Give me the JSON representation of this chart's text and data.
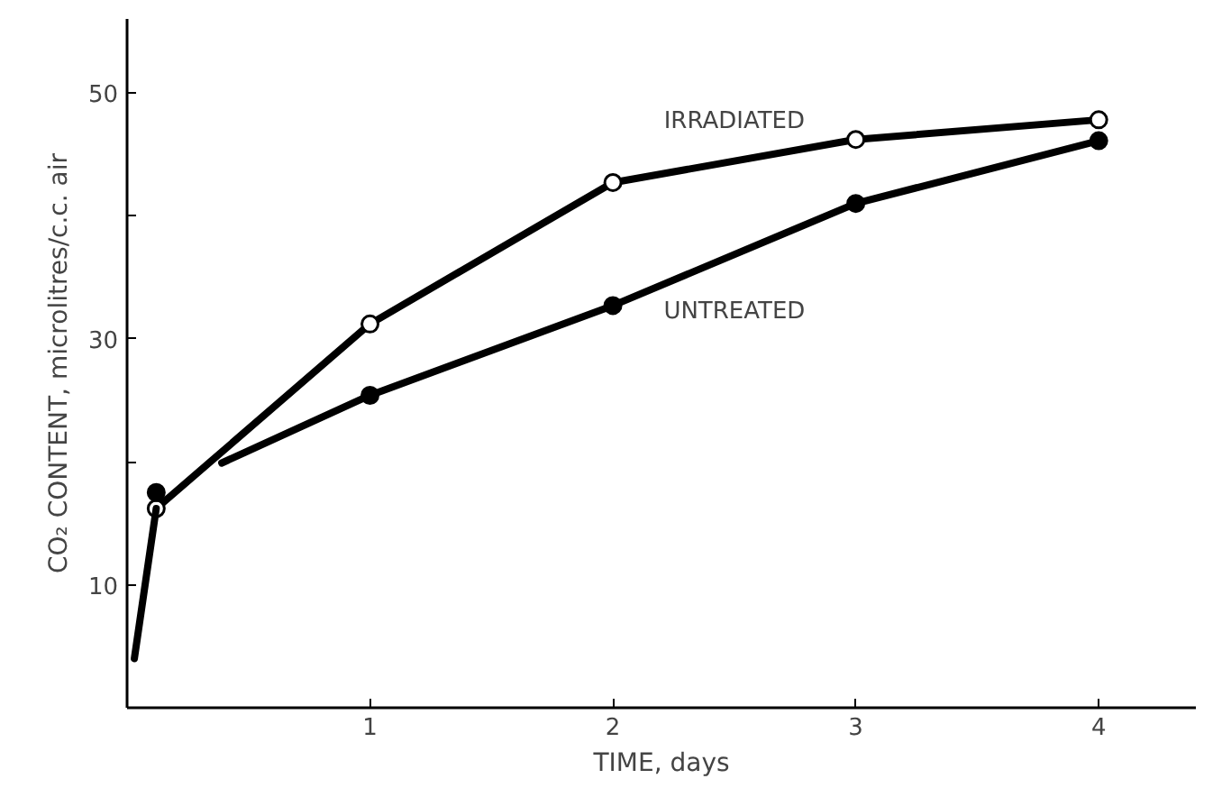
{
  "chart_data": {
    "type": "line",
    "xlabel": "TIME, days",
    "ylabel": "CO₂ CONTENT, microlitres/c.c. air",
    "xlim": [
      0,
      4.4
    ],
    "ylim": [
      0,
      56
    ],
    "xticks": [
      1,
      2,
      3,
      4
    ],
    "yticks": [
      10,
      {
        "value": 20,
        "label": null
      },
      30,
      {
        "value": 40,
        "label": null
      },
      50
    ],
    "grid": false,
    "marker": "circle",
    "line_style": "solid",
    "series": [
      {
        "name": "IRRADIATED",
        "color": "#000000",
        "colors": [
          "#ffffff",
          "#ffffff",
          "#ffffff",
          "#ffffff",
          "#ffffff"
        ],
        "x": [
          0.12,
          1,
          2,
          3,
          4
        ],
        "values": [
          16.2,
          31.2,
          42.7,
          46.2,
          47.8
        ]
      },
      {
        "color": "#000000",
        "marker": "none",
        "x": [
          0.03,
          0.12
        ],
        "values": [
          4.0,
          16.2
        ]
      },
      {
        "name": "UNTREATED",
        "color": "#000000",
        "colors": [
          "#000000",
          "#000000",
          "#000000",
          "#000000"
        ],
        "x": [
          1,
          2,
          3,
          4
        ],
        "values": [
          25.4,
          32.7,
          41.0,
          46.1
        ]
      },
      {
        "color": "#000000",
        "marker": "none",
        "x": [
          0.39,
          1
        ],
        "values": [
          19.9,
          25.4
        ]
      },
      {
        "type": "scatter",
        "color": "#000000",
        "colors": [
          "#000000"
        ],
        "x": [
          0.12
        ],
        "values": [
          17.5
        ]
      }
    ]
  }
}
